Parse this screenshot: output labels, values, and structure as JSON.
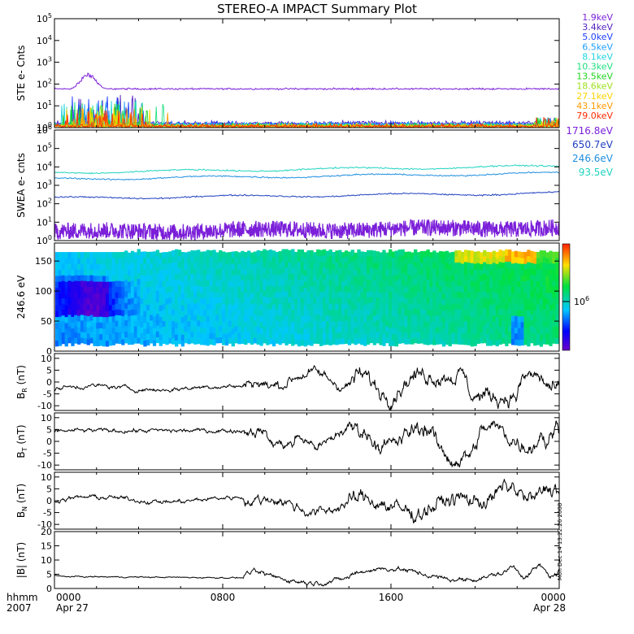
{
  "title": "STEREO-A IMPACT Summary Plot",
  "footer": {
    "left_top": "hhmm",
    "left_bottom": "2007",
    "ticks": [
      {
        "time": "0000",
        "date": "Apr 27"
      },
      {
        "time": "0800",
        "date": ""
      },
      {
        "time": "1600",
        "date": ""
      },
      {
        "time": "0000",
        "date": "Apr 28"
      }
    ]
  },
  "timestamp_note": "Mon Dec 14 13:22:26 2008",
  "chart_data": [
    {
      "type": "line",
      "id": "ste",
      "ylabel": "STE e- Cnts",
      "yscale": "log",
      "ylim_exp": [
        0,
        5
      ],
      "yticks_exp": [
        0,
        1,
        2,
        3,
        4,
        5
      ],
      "xlim_hours": [
        0,
        24
      ],
      "series": [
        {
          "name": "1.9keV",
          "color": "#7b1fd9",
          "baseline": 60
        },
        {
          "name": "3.4keV",
          "color": "#4f1fbf",
          "baseline": 1.4
        },
        {
          "name": "5.0keV",
          "color": "#1f3fff",
          "baseline": 1.3
        },
        {
          "name": "6.5keV",
          "color": "#1f9fff",
          "baseline": 1.2
        },
        {
          "name": "8.1keV",
          "color": "#22d4e0",
          "baseline": 1.1
        },
        {
          "name": "10.3keV",
          "color": "#1fe07f",
          "baseline": 1.1
        },
        {
          "name": "13.5keV",
          "color": "#1fd41f",
          "baseline": 1.05
        },
        {
          "name": "18.6keV",
          "color": "#9fe01f",
          "baseline": 1.05
        },
        {
          "name": "27.1keV",
          "color": "#ffd400",
          "baseline": 1.02
        },
        {
          "name": "43.1keV",
          "color": "#ff9a00",
          "baseline": 1.02
        },
        {
          "name": "79.0keV",
          "color": "#ff2a00",
          "baseline": 1.02
        }
      ]
    },
    {
      "type": "line",
      "id": "swea",
      "ylabel": "SWEA e- cnts",
      "yscale": "log",
      "ylim_exp": [
        0,
        6
      ],
      "yticks_exp": [
        0,
        1,
        2,
        3,
        4,
        5,
        6
      ],
      "xlim_hours": [
        0,
        24
      ],
      "series": [
        {
          "name": "1716.8eV",
          "color": "#7b1fd9",
          "start": 3,
          "end": 5
        },
        {
          "name": "650.7eV",
          "color": "#1f3fbf",
          "start": 200,
          "end": 380
        },
        {
          "name": "246.6eV",
          "color": "#1f8fe0",
          "start": 2200,
          "end": 4500
        },
        {
          "name": "93.5eV",
          "color": "#22d4c0",
          "start": 5000,
          "end": 11000
        }
      ]
    },
    {
      "type": "heatmap",
      "id": "pad",
      "ylabel": "246.6 eV",
      "ylim": [
        0,
        180
      ],
      "yticks": [
        0,
        50,
        100,
        150
      ],
      "xlim_hours": [
        0,
        24
      ],
      "colorbar_label": "10",
      "colorbar_exp": "6"
    },
    {
      "type": "line",
      "id": "br",
      "ylabel_main": "B",
      "ylabel_sub": "R",
      "ylabel_unit": "(nT)",
      "ylim": [
        -12,
        12
      ],
      "yticks": [
        -10,
        -5,
        0,
        5,
        10
      ],
      "xlim_hours": [
        0,
        24
      ],
      "color": "#000000"
    },
    {
      "type": "line",
      "id": "bt",
      "ylabel_main": "B",
      "ylabel_sub": "T",
      "ylabel_unit": "(nT)",
      "ylim": [
        -12,
        12
      ],
      "yticks": [
        -10,
        -5,
        0,
        5,
        10
      ],
      "xlim_hours": [
        0,
        24
      ],
      "color": "#000000"
    },
    {
      "type": "line",
      "id": "bn",
      "ylabel_main": "B",
      "ylabel_sub": "N",
      "ylabel_unit": "(nT)",
      "ylim": [
        -12,
        12
      ],
      "yticks": [
        -10,
        -5,
        0,
        5,
        10
      ],
      "xlim_hours": [
        0,
        24
      ],
      "color": "#000000"
    },
    {
      "type": "line",
      "id": "bmag",
      "ylabel_main": "|B|",
      "ylabel_sub": "",
      "ylabel_unit": "(nT)",
      "ylim": [
        0,
        20
      ],
      "yticks": [
        0,
        5,
        10,
        15,
        20
      ],
      "xlim_hours": [
        0,
        24
      ],
      "color": "#000000"
    }
  ]
}
